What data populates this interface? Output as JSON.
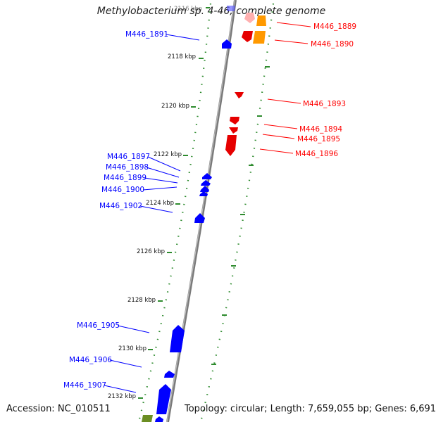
{
  "title": "Methylobacterium sp. 4-46, complete genome",
  "footer": {
    "accession": "Accession: NC_010511",
    "info": "Topology: circular; Length: 7,659,055 bp; Genes: 6,691"
  },
  "colors": {
    "forward_gene": "#ff0000",
    "reverse_gene": "#0000ff",
    "other_gene_orange": "#ff9900",
    "other_gene_olive": "#6b8e23",
    "tick_color": "#228b22",
    "backbone": "#7f7f7f"
  },
  "scale_labels": [
    "2116 kbp",
    "2118 kbp",
    "2120 kbp",
    "2122 kbp",
    "2124 kbp",
    "2126 kbp",
    "2128 kbp",
    "2130 kbp",
    "2132 kbp"
  ],
  "gene_labels_forward": [
    "M446_1889",
    "M446_1890",
    "M446_1893",
    "M446_1894",
    "M446_1895",
    "M446_1896"
  ],
  "gene_labels_reverse": [
    "M446_1891",
    "M446_1897",
    "M446_1898",
    "M446_1899",
    "M446_1900",
    "M446_1902",
    "M446_1905",
    "M446_1906",
    "M446_1907"
  ]
}
